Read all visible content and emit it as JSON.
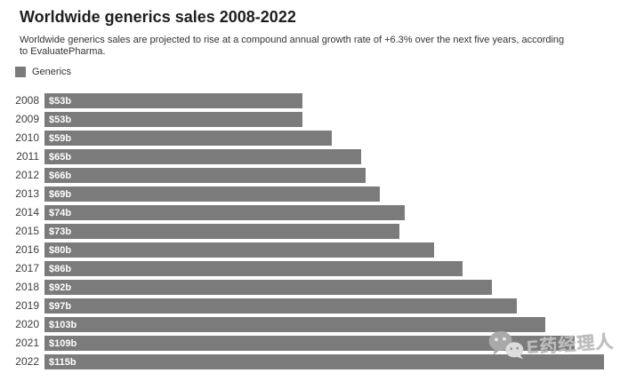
{
  "chart_data": {
    "type": "bar",
    "orientation": "horizontal",
    "title": "Worldwide generics sales 2008-2022",
    "subtitle": "Worldwide generics sales are projected to rise at a compound annual growth rate of +6.3% over the next five years, according to EvaluatePharma.",
    "legend": [
      "Generics"
    ],
    "legend_position": "top-left",
    "categories": [
      "2008",
      "2009",
      "2010",
      "2011",
      "2012",
      "2013",
      "2014",
      "2015",
      "2016",
      "2017",
      "2018",
      "2019",
      "2020",
      "2021",
      "2022"
    ],
    "values": [
      53,
      53,
      59,
      65,
      66,
      69,
      74,
      73,
      80,
      86,
      92,
      97,
      103,
      109,
      115
    ],
    "bar_labels": [
      "$53b",
      "$53b",
      "$59b",
      "$65b",
      "$66b",
      "$69b",
      "$74b",
      "$73b",
      "$80b",
      "$86b",
      "$92b",
      "$97b",
      "$103b",
      "$109b",
      "$115b"
    ],
    "xlim": [
      0,
      115
    ],
    "grid": false,
    "bar_color": "#7b7b7b",
    "bar_label_color": "#ffffff"
  },
  "legend_label": "Generics",
  "watermark": {
    "icon": "wechat-icon",
    "text": "E药经理人",
    "color": "#bdbdbd"
  }
}
